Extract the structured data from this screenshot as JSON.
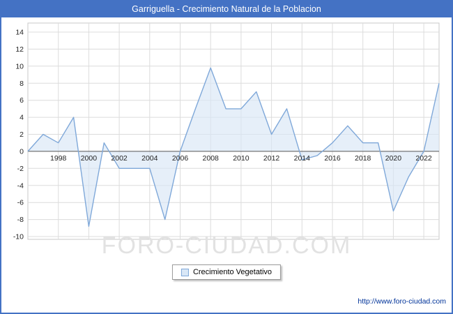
{
  "title": "Garriguella - Crecimiento Natural de la Poblacion",
  "legend": {
    "label": "Crecimiento Vegetativo"
  },
  "watermark": "FORO-CIUDAD.COM",
  "footer": {
    "url": "http://www.foro-ciudad.com"
  },
  "colors": {
    "frame": "#4472c4",
    "titlebar_bg": "#4472c4",
    "title_text": "#ffffff",
    "line": "#7fa8d9",
    "fill": "#d9e7f6",
    "grid": "#dcdcdc",
    "zero_axis": "#555555",
    "plot_border": "#c8c8c8",
    "url_text": "#003399",
    "watermark": "#e2e2e2"
  },
  "chart_data": {
    "type": "area",
    "title": "Garriguella - Crecimiento Natural de la Poblacion",
    "xlabel": "",
    "ylabel": "",
    "x": [
      1996,
      1997,
      1998,
      1999,
      2000,
      2001,
      2002,
      2003,
      2004,
      2005,
      2006,
      2007,
      2008,
      2009,
      2010,
      2011,
      2012,
      2013,
      2014,
      2015,
      2016,
      2017,
      2018,
      2019,
      2020,
      2021,
      2022,
      2023
    ],
    "series": [
      {
        "name": "Crecimiento Vegetativo",
        "values": [
          0,
          2,
          1,
          4,
          -8.8,
          1,
          -2,
          -2,
          -2,
          -8,
          0,
          5,
          9.8,
          5,
          5,
          7,
          2,
          5,
          -1,
          -0.5,
          1,
          3,
          1,
          1,
          -7,
          -3,
          0,
          8
        ]
      }
    ],
    "ylim": [
      -10,
      14
    ],
    "ytick_step": 2,
    "xtick_labels": [
      "1998",
      "2000",
      "2002",
      "2004",
      "2006",
      "2008",
      "2010",
      "2012",
      "2014",
      "2016",
      "2018",
      "2020",
      "2022"
    ],
    "grid": true,
    "legend_position": "bottom-center"
  }
}
